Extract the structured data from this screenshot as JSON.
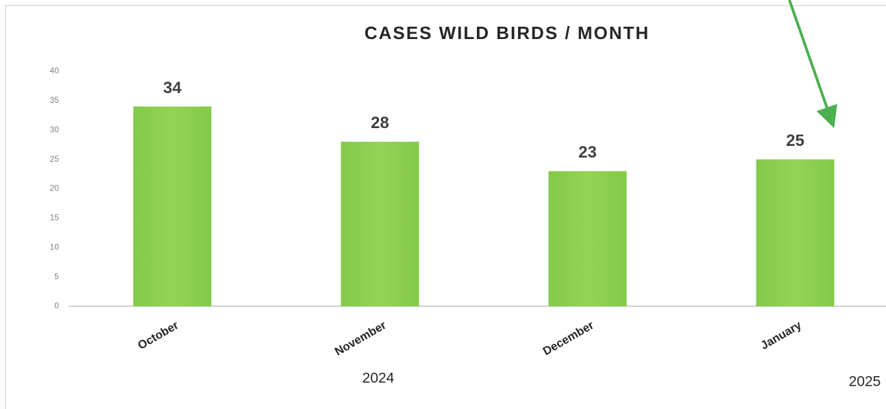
{
  "chart_data": {
    "type": "bar",
    "title": "CASES WILD BIRDS / MONTH",
    "categories": [
      "October",
      "November",
      "December",
      "January"
    ],
    "values": [
      34,
      28,
      23,
      25
    ],
    "color": "#8fd14f",
    "ylim": [
      0,
      40
    ],
    "yticks": [
      0,
      5,
      10,
      15,
      20,
      25,
      30,
      35,
      40
    ],
    "annotations": [
      "2024",
      "2025"
    ]
  }
}
